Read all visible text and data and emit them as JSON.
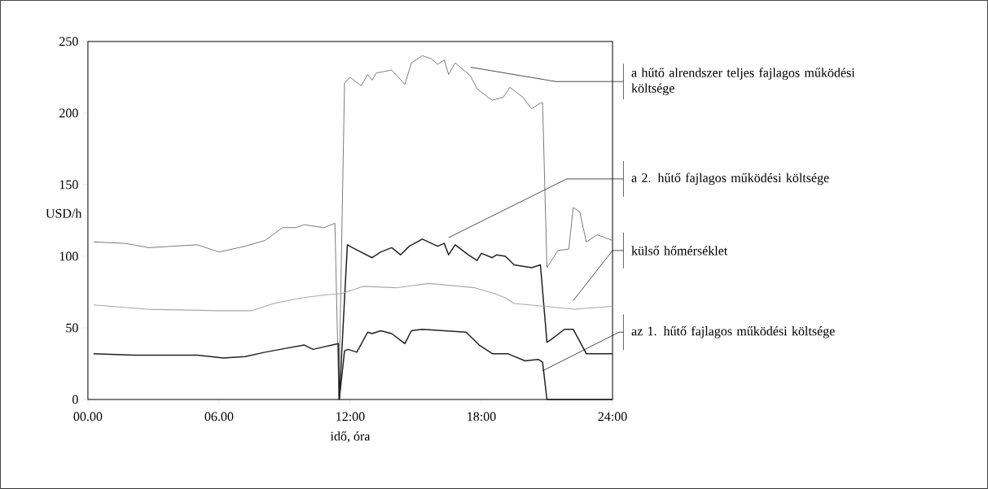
{
  "chart_data": {
    "type": "line",
    "xlabel": "idő, óra",
    "ylabel": "USD/h",
    "xlim": [
      0,
      24
    ],
    "ylim": [
      0,
      250
    ],
    "xticks": [
      {
        "value": 0,
        "label": "00.00"
      },
      {
        "value": 6,
        "label": "06.00"
      },
      {
        "value": 12,
        "label": "12:00"
      },
      {
        "value": 18,
        "label": "18:00"
      },
      {
        "value": 24,
        "label": "24:00"
      }
    ],
    "yticks": [
      0,
      50,
      100,
      150,
      200,
      250
    ],
    "series": [
      {
        "name": "a hűtő alrendszer teljes fajlagos működési költsége",
        "color": "#5a5a5a",
        "x": [
          0.26,
          1.7,
          2.8,
          5.0,
          6.0,
          7.2,
          8.1,
          8.9,
          9.5,
          9.9,
          10.8,
          11.3,
          11.48,
          11.74,
          12,
          12.5,
          12.8,
          13,
          13.2,
          13.9,
          14.5,
          14.8,
          15.3,
          15.7,
          16,
          16.3,
          16.5,
          16.8,
          17.5,
          17.8,
          18.3,
          18.5,
          19,
          19.3,
          19.9,
          20.3,
          20.7,
          20.8,
          21.0,
          21.5,
          22,
          22.2,
          22.5,
          22.8,
          23.3,
          24
        ],
        "values": [
          110,
          109,
          106,
          108,
          103,
          107,
          111,
          120,
          120,
          122,
          120,
          123,
          0,
          221,
          225,
          219,
          227,
          223,
          228,
          230,
          220,
          235,
          240,
          238,
          234,
          237,
          227,
          235,
          226,
          217,
          211,
          209,
          211,
          218,
          211,
          203,
          207,
          207,
          92,
          104,
          105,
          134,
          131,
          110,
          115,
          111
        ]
      },
      {
        "name": "a 2. hűtő fajlagos működési költsége",
        "color": "#222222",
        "x": [
          11.5,
          11.87,
          12.1,
          13,
          13.4,
          13.9,
          14.3,
          14.7,
          15.3,
          16,
          16.3,
          16.5,
          16.8,
          17.4,
          17.8,
          18,
          18.5,
          18.7,
          19.1,
          19.5,
          19.9,
          20.3,
          20.7,
          21,
          21.2,
          21.8,
          22.2,
          22.8,
          24
        ],
        "values": [
          0,
          108,
          106,
          99,
          103,
          106,
          101,
          107,
          112,
          107,
          109,
          101,
          108,
          101,
          97,
          102,
          99,
          101,
          100,
          94,
          93,
          92,
          94,
          40,
          42,
          49,
          49,
          32,
          32
        ]
      },
      {
        "name": "külső hőmérséklet",
        "color": "#a8a8a8",
        "x": [
          0.26,
          2.7,
          5.9,
          7.5,
          8.5,
          9.8,
          10.84,
          11.6,
          12.6,
          14.1,
          15.6,
          17.7,
          18.6,
          19.1,
          19.5,
          20.9,
          22.2,
          24
        ],
        "values": [
          66,
          63,
          62,
          62,
          67,
          71,
          73,
          74,
          79,
          78,
          81,
          78,
          74,
          71,
          67,
          65,
          63,
          65
        ]
      },
      {
        "name": "az 1. hűtő fajlagos működési költsége",
        "color": "#222222",
        "x": [
          0.26,
          2.1,
          5,
          6.2,
          7.2,
          8.1,
          8.8,
          9.9,
          10.3,
          11.46,
          11.5,
          11.74,
          11.9,
          12.3,
          12.8,
          13,
          13.4,
          13.9,
          14.5,
          14.8,
          15.3,
          17.3,
          17.9,
          18.5,
          19.2,
          20,
          20.6,
          20.8,
          21,
          24
        ],
        "values": [
          32,
          31,
          31,
          29,
          30,
          33,
          35,
          38,
          35,
          39,
          0,
          34,
          35,
          33,
          47,
          46,
          48,
          46,
          39,
          48,
          49,
          47,
          38,
          32,
          32,
          27,
          28,
          26,
          0,
          0
        ]
      }
    ]
  }
}
